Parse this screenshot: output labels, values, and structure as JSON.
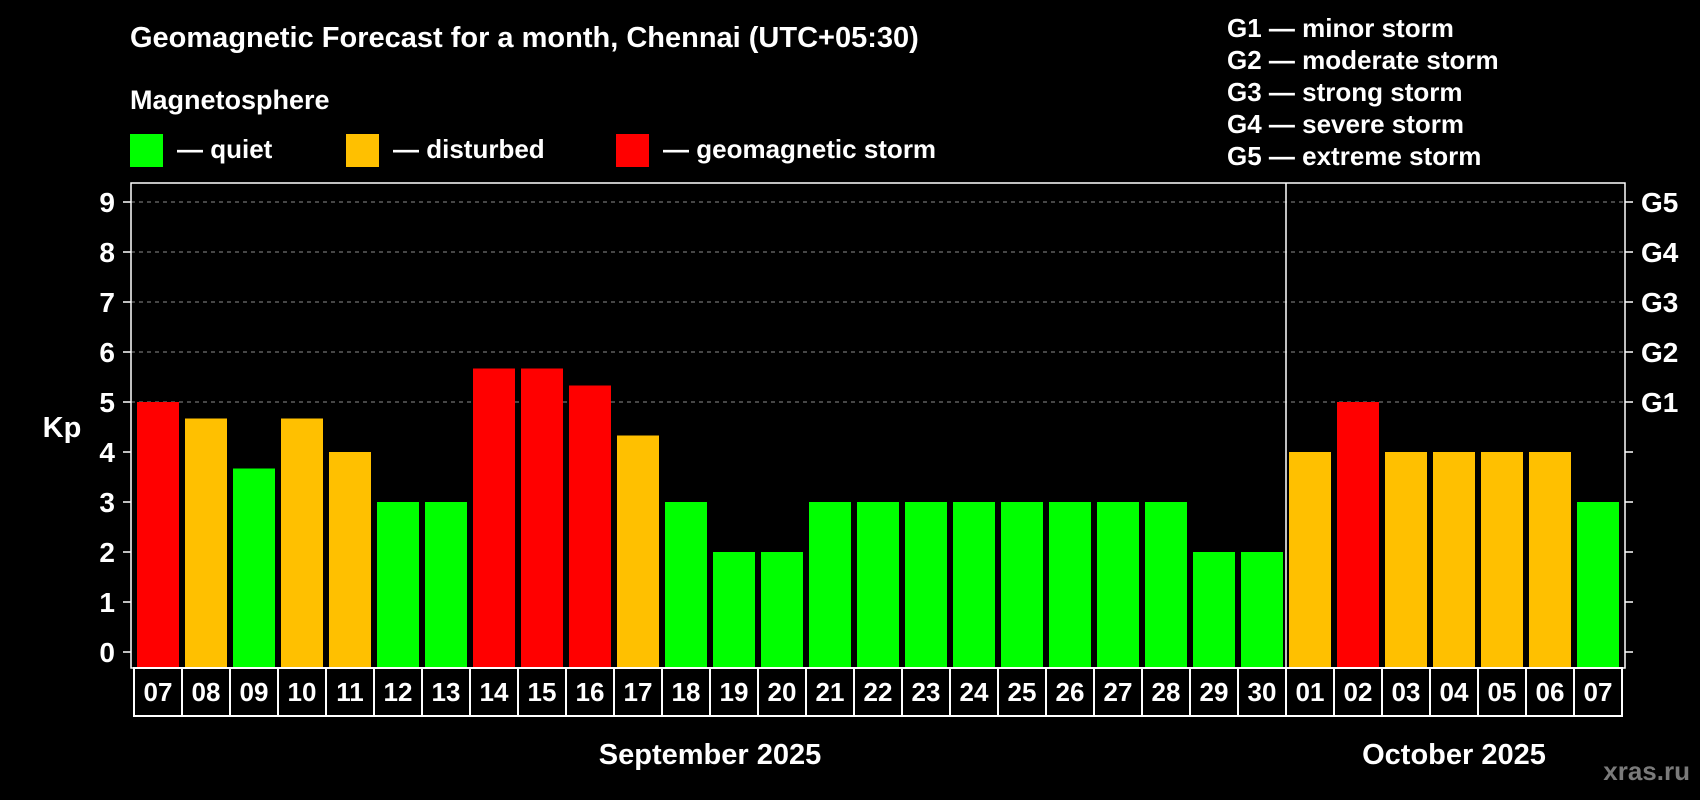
{
  "header": {
    "title": "Geomagnetic Forecast for a month, Chennai (UTC+05:30)",
    "subtitle": "Magnetosphere"
  },
  "legend": {
    "items": [
      {
        "label": "— quiet",
        "color": "#00ff00"
      },
      {
        "label": "— disturbed",
        "color": "#ffc000"
      },
      {
        "label": "— geomagnetic storm",
        "color": "#ff0000"
      }
    ]
  },
  "storm_scale": [
    "G1 — minor storm",
    "G2 — moderate storm",
    "G3 — strong storm",
    "G4 — severe storm",
    "G5 — extreme storm"
  ],
  "watermark": "xras.ru",
  "colors": {
    "quiet": "#00ff00",
    "disturbed": "#ffc000",
    "storm": "#ff0000",
    "background": "#000000",
    "axis": "#ffffff",
    "grid": "#8c8c8c"
  },
  "chart_data": {
    "type": "bar",
    "title": "Geomagnetic Forecast for a month, Chennai (UTC+05:30)",
    "ylabel": "Kp",
    "ylim": [
      0,
      9
    ],
    "yticks": [
      "0",
      "1",
      "2",
      "3",
      "4",
      "5",
      "6",
      "7",
      "8",
      "9"
    ],
    "right_axis_labels": [
      {
        "value": 5,
        "label": "G1"
      },
      {
        "value": 6,
        "label": "G2"
      },
      {
        "value": 7,
        "label": "G3"
      },
      {
        "value": 8,
        "label": "G4"
      },
      {
        "value": 9,
        "label": "G5"
      }
    ],
    "grid": "dashed horizontal at Kp 5–9",
    "categories": [
      "07",
      "08",
      "09",
      "10",
      "11",
      "12",
      "13",
      "14",
      "15",
      "16",
      "17",
      "18",
      "19",
      "20",
      "21",
      "22",
      "23",
      "24",
      "25",
      "26",
      "27",
      "28",
      "29",
      "30",
      "01",
      "02",
      "03",
      "04",
      "05",
      "06",
      "07"
    ],
    "values": [
      5.0,
      4.67,
      3.67,
      4.67,
      4.0,
      3.0,
      3.0,
      5.67,
      5.67,
      5.33,
      4.33,
      3.0,
      2.0,
      2.0,
      3.0,
      3.0,
      3.0,
      3.0,
      3.0,
      3.0,
      3.0,
      3.0,
      2.0,
      2.0,
      4.0,
      5.0,
      4.0,
      4.0,
      4.0,
      4.0,
      3.0
    ],
    "status": [
      "storm",
      "disturbed",
      "quiet",
      "disturbed",
      "disturbed",
      "quiet",
      "quiet",
      "storm",
      "storm",
      "storm",
      "disturbed",
      "quiet",
      "quiet",
      "quiet",
      "quiet",
      "quiet",
      "quiet",
      "quiet",
      "quiet",
      "quiet",
      "quiet",
      "quiet",
      "quiet",
      "quiet",
      "disturbed",
      "storm",
      "disturbed",
      "disturbed",
      "disturbed",
      "disturbed",
      "quiet"
    ],
    "months": [
      {
        "label": "September 2025",
        "start": 0,
        "end": 23
      },
      {
        "label": "October 2025",
        "start": 24,
        "end": 30
      }
    ],
    "month_divider_after_index": 23
  }
}
